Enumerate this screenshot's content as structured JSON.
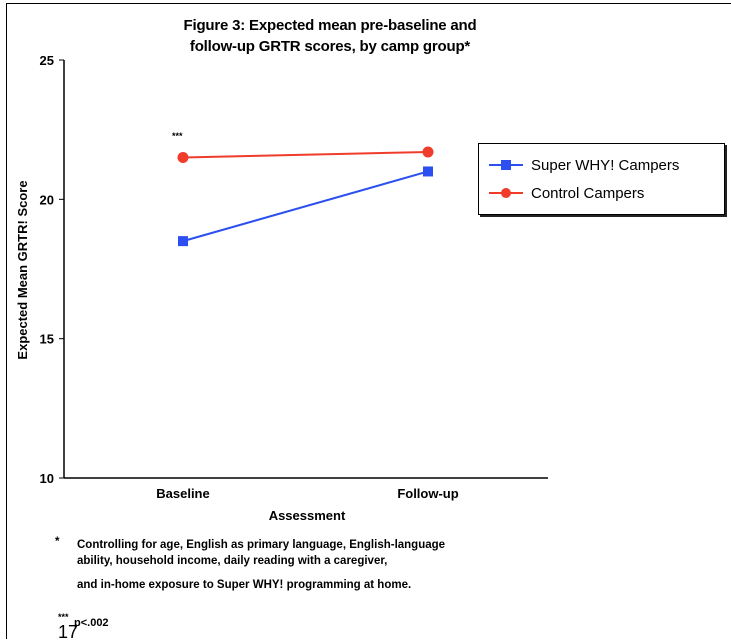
{
  "chart_data": {
    "type": "line",
    "title_lines": [
      "Figure 3: Expected mean pre-baseline and",
      "follow-up GRTR scores, by camp group*"
    ],
    "xlabel": "Assessment",
    "ylabel": "Expected Mean GRTR! Score",
    "categories": [
      "Baseline",
      "Follow-up"
    ],
    "ylim": [
      10,
      25
    ],
    "yticks": [
      10,
      15,
      20,
      25
    ],
    "grid": false,
    "legend_position": "right",
    "series": [
      {
        "name": "Super WHY! Campers",
        "values": [
          18.5,
          21.0
        ],
        "color": "#2b4ff0",
        "marker": "square"
      },
      {
        "name": "Control Campers",
        "values": [
          21.5,
          21.7
        ],
        "color": "#f03c2a",
        "marker": "circle"
      }
    ],
    "annotations": [
      {
        "text": "***",
        "category": "Baseline"
      }
    ]
  },
  "footnotes": {
    "star": "*",
    "controls_lines": [
      "Controlling for age, English as primary language, English-language",
      "ability, household income, daily reading with a caregiver,",
      "and in-home exposure to Super WHY! programming at home."
    ],
    "sig_marker": "***",
    "sig_text": "p<.002"
  },
  "page_fragment": "17"
}
